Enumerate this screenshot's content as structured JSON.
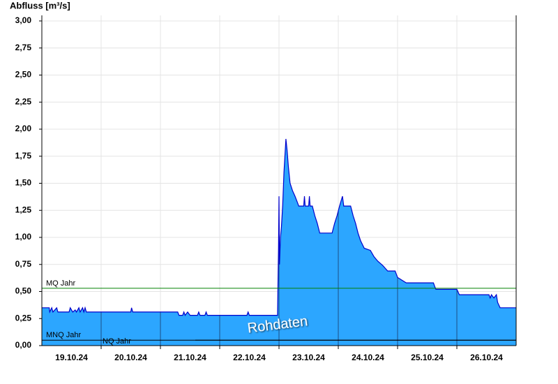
{
  "chart_data": {
    "type": "area",
    "y_label": "Abfluss [m³/s]",
    "annotation": "Rohdaten",
    "color": "#2ca6ff",
    "line_color": "#0000cc",
    "categories": [
      "19.10.24",
      "20.10.24",
      "21.10.24",
      "22.10.24",
      "23.10.24",
      "24.10.24",
      "25.10.24",
      "26.10.24"
    ],
    "xlim": [
      0,
      192
    ],
    "xticks": [
      24,
      48,
      72,
      96,
      120,
      144,
      168
    ],
    "ylim": [
      0,
      3
    ],
    "yticks": [
      {
        "value": 0,
        "label": "0,00"
      },
      {
        "value": 0.25,
        "label": "0,25"
      },
      {
        "value": 0.5,
        "label": "0,50"
      },
      {
        "value": 0.75,
        "label": "0,75"
      },
      {
        "value": 1,
        "label": "1,00"
      },
      {
        "value": 1.25,
        "label": "1,25"
      },
      {
        "value": 1.5,
        "label": "1,50"
      },
      {
        "value": 1.75,
        "label": "1,75"
      },
      {
        "value": 2,
        "label": "2,00"
      },
      {
        "value": 2.25,
        "label": "2,25"
      },
      {
        "value": 2.5,
        "label": "2,50"
      },
      {
        "value": 2.75,
        "label": "2,75"
      },
      {
        "value": 3,
        "label": "3,00"
      }
    ],
    "grid": true,
    "reference_lines": [
      {
        "label": "MQ Jahr",
        "value": 0.53,
        "color": "#008000"
      },
      {
        "label": "MNQ Jahr",
        "value": 0.05,
        "color": "#000000"
      },
      {
        "label": "NQ Jahr",
        "value": 0.05,
        "color": "#000000"
      }
    ],
    "x": [
      0,
      3,
      3.2,
      4,
      4.5,
      6,
      6.5,
      11,
      11.5,
      12.5,
      13.5,
      14,
      15,
      15.5,
      16.5,
      17,
      17.5,
      18,
      36,
      36.3,
      36.8,
      55,
      55.5,
      57,
      57.5,
      58,
      59,
      60,
      63,
      63.5,
      64,
      66,
      66.5,
      67,
      68,
      83,
      83.5,
      84,
      95.4,
      95.6,
      95.8,
      96,
      96.2,
      96.6,
      97,
      97.5,
      98,
      98.5,
      98.8,
      99.3,
      99.8,
      100.5,
      101.5,
      102.5,
      103.5,
      104,
      106,
      106.3,
      106.6,
      108,
      108.3,
      108.6,
      109.5,
      110.5,
      111.5,
      112.5,
      117.5,
      118.5,
      119.5,
      120.5,
      121.7,
      122.2,
      125,
      126,
      127,
      128,
      129,
      130.5,
      133,
      134.5,
      136,
      138,
      140,
      143,
      144,
      147.5,
      158.5,
      159,
      159.5,
      168,
      169,
      181,
      181.5,
      182,
      183,
      184,
      184.5,
      185.5,
      192
    ],
    "values": [
      0.35,
      0.35,
      0.31,
      0.35,
      0.31,
      0.35,
      0.31,
      0.31,
      0.35,
      0.31,
      0.33,
      0.31,
      0.35,
      0.31,
      0.35,
      0.31,
      0.35,
      0.31,
      0.31,
      0.35,
      0.31,
      0.31,
      0.28,
      0.28,
      0.31,
      0.28,
      0.31,
      0.28,
      0.28,
      0.31,
      0.28,
      0.28,
      0.31,
      0.28,
      0.28,
      0.28,
      0.31,
      0.28,
      0.28,
      0.6,
      0.9,
      1.38,
      0.75,
      1.0,
      1.1,
      1.3,
      1.6,
      1.8,
      1.91,
      1.8,
      1.65,
      1.5,
      1.43,
      1.38,
      1.32,
      1.29,
      1.29,
      1.38,
      1.29,
      1.29,
      1.38,
      1.29,
      1.29,
      1.2,
      1.13,
      1.04,
      1.04,
      1.13,
      1.2,
      1.29,
      1.38,
      1.29,
      1.29,
      1.2,
      1.13,
      1.04,
      0.97,
      0.9,
      0.88,
      0.82,
      0.78,
      0.74,
      0.69,
      0.69,
      0.63,
      0.58,
      0.58,
      0.55,
      0.52,
      0.52,
      0.47,
      0.47,
      0.44,
      0.47,
      0.44,
      0.47,
      0.4,
      0.35,
      0.35
    ]
  }
}
